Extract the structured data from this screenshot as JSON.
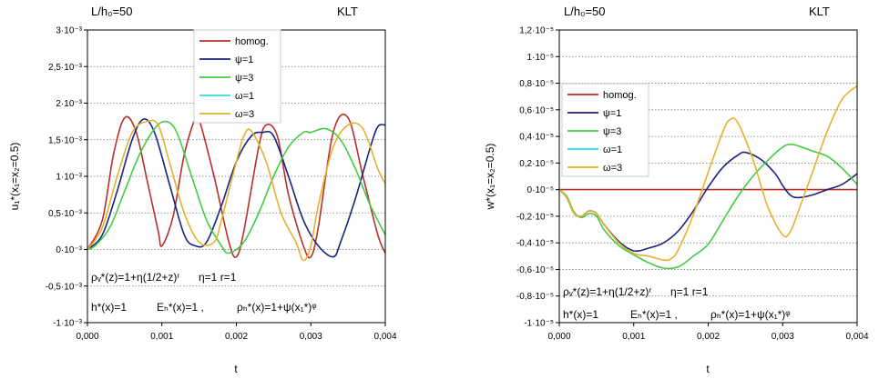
{
  "chart_data": [
    {
      "type": "line",
      "top_left_label": "L/h₀=50",
      "top_right_label": "KLT",
      "xlabel": "t",
      "ylabel": "u₁*(x₁=x₂=0.5)",
      "xlim": [
        0,
        0.004
      ],
      "ylim": [
        -0.001,
        0.003
      ],
      "x_ticks": [
        "0,000",
        "0,001",
        "0,002",
        "0,003",
        "0,004"
      ],
      "y_ticks": [
        "-1·10⁻³",
        "-0,5·10⁻³",
        "0·10⁻³",
        "0,5·10⁻³",
        "1·10⁻³",
        "1,5·10⁻³",
        "2·10⁻³",
        "2,5·10⁻³",
        "3·10⁻³"
      ],
      "annotations": {
        "rho_v": "ρᵥ*(z)=1+η(1/2+z)ʳ",
        "params": "η=1   r=1",
        "h": "h*(x)=1",
        "EH": "Eₕ*(x)=1 ,",
        "rhoH": "ρₕ*(x)=1+ψ(x₁*)ᵠ"
      },
      "legend_position": "top-center",
      "grid": "horizontal-dotted",
      "series": [
        {
          "name": "homog.",
          "color": "#b8302a",
          "x": [
            0,
            0.0002,
            0.00035,
            0.0005,
            0.00065,
            0.0008,
            0.00095,
            0.001,
            0.00115,
            0.0013,
            0.00145,
            0.0015,
            0.0017,
            0.0019,
            0.002,
            0.0021,
            0.0023,
            0.0024,
            0.00255,
            0.0027,
            0.0029,
            0.003,
            0.0031,
            0.0033,
            0.0035,
            0.0037,
            0.0039,
            0.004
          ],
          "y": [
            0,
            0.0004,
            0.0013,
            0.0018,
            0.00162,
            0.00095,
            0.00025,
            5e-05,
            0.00045,
            0.0013,
            0.0018,
            0.00178,
            0.001,
            0.0001,
            -0.0001,
            0.00025,
            0.0014,
            0.0017,
            0.00155,
            0.00075,
            5e-05,
            -0.0001,
            0.0003,
            0.0016,
            0.0018,
            0.001,
            0.0002,
            -5e-05
          ]
        },
        {
          "name": "ψ=1",
          "color": "#1a237e",
          "x": [
            0,
            0.0002,
            0.0004,
            0.0006,
            0.00075,
            0.0009,
            0.0011,
            0.0013,
            0.00145,
            0.0016,
            0.0018,
            0.002,
            0.0022,
            0.00235,
            0.0025,
            0.0027,
            0.0029,
            0.0031,
            0.0033,
            0.0034,
            0.0036,
            0.0038,
            0.0039,
            0.004
          ],
          "y": [
            0,
            0.0002,
            0.0008,
            0.0015,
            0.00178,
            0.0016,
            0.0009,
            0.0002,
            5e-05,
            0.0001,
            0.0006,
            0.0012,
            0.00155,
            0.0016,
            0.00155,
            0.001,
            0.0004,
            5e-05,
            -0.0001,
            0.0001,
            0.0007,
            0.0014,
            0.00168,
            0.0017
          ]
        },
        {
          "name": "ψ=3",
          "color": "#44cc44",
          "x": [
            0,
            0.0001,
            0.0003,
            0.0005,
            0.0007,
            0.0009,
            0.00105,
            0.0012,
            0.0014,
            0.0016,
            0.0018,
            0.0019,
            0.0021,
            0.0023,
            0.0025,
            0.0027,
            0.0029,
            0.003,
            0.0032,
            0.0034,
            0.0036,
            0.0038,
            0.004
          ],
          "y": [
            0,
            5e-05,
            0.0003,
            0.0008,
            0.0013,
            0.00165,
            0.00175,
            0.0016,
            0.001,
            0.0004,
            5e-05,
            -5e-05,
            0.0001,
            0.0005,
            0.001,
            0.0014,
            0.0016,
            0.0016,
            0.00165,
            0.0015,
            0.0011,
            0.0006,
            0.0002
          ]
        },
        {
          "name": "ω=1",
          "color": "#33dddd",
          "x": [],
          "y": []
        },
        {
          "name": "ω=3",
          "color": "#e6b030",
          "x": [
            0,
            0.0002,
            0.0004,
            0.0006,
            0.0008,
            0.00095,
            0.0011,
            0.0013,
            0.0015,
            0.0017,
            0.0018,
            0.0019,
            0.002,
            0.0021,
            0.0022,
            0.0024,
            0.0026,
            0.0028,
            0.0029,
            0.003,
            0.0031,
            0.0033,
            0.0035,
            0.0037,
            0.0039,
            0.004
          ],
          "y": [
            0,
            0.0003,
            0.001,
            0.0016,
            0.00175,
            0.0017,
            0.0012,
            0.0005,
            0.0001,
            0.0001,
            0.0004,
            0.0008,
            0.0012,
            0.00155,
            0.00162,
            0.0012,
            0.0005,
            0.0001,
            -0.00015,
            5e-05,
            0.0006,
            0.0014,
            0.0017,
            0.00165,
            0.0011,
            0.0009
          ]
        }
      ]
    },
    {
      "type": "line",
      "top_left_label": "L/h₀=50",
      "top_right_label": "KLT",
      "xlabel": "t",
      "ylabel": "w*(x₁=x₂=0.5)",
      "xlim": [
        0,
        0.004
      ],
      "ylim": [
        -1e-05,
        1.2e-05
      ],
      "x_ticks": [
        "0,000",
        "0,001",
        "0,002",
        "0,003",
        "0,004"
      ],
      "y_ticks": [
        "-1·10⁻⁵",
        "-0,8·10⁻⁵",
        "-0,6·10⁻⁵",
        "-0,4·10⁻⁵",
        "-0,2·10⁻⁵",
        "0·10⁻⁵",
        "0,2·10⁻⁵",
        "0,4·10⁻⁵",
        "0,6·10⁻⁵",
        "0,8·10⁻⁵",
        "1·10⁻⁵",
        "1,2·10⁻⁵"
      ],
      "annotations": {
        "rho_v": "ρᵥ*(z)=1+η(1/2+z)ʳ",
        "params": "η=1   r=1",
        "h": "h*(x)=1",
        "EH": "Eₕ*(x)=1 ,",
        "rhoH": "ρₕ*(x)=1+ψ(x₁*)ᵠ"
      },
      "legend_position": "top-left",
      "grid": "horizontal-dotted",
      "series": [
        {
          "name": "homog.",
          "color": "#b8302a",
          "x": [
            0,
            0.004
          ],
          "y": [
            0,
            0
          ]
        },
        {
          "name": "ψ=1",
          "color": "#1a237e",
          "x": [
            0,
            0.0001,
            0.0002,
            0.0003,
            0.0004,
            0.0005,
            0.0006,
            0.0008,
            0.001,
            0.0012,
            0.0014,
            0.0016,
            0.0018,
            0.002,
            0.0022,
            0.0024,
            0.0025,
            0.0027,
            0.0029,
            0.003,
            0.0031,
            0.0032,
            0.0034,
            0.0036,
            0.0038,
            0.004
          ],
          "y": [
            0,
            -6e-07,
            -1.8e-06,
            -2e-06,
            -1.6e-06,
            -1.8e-06,
            -2.6e-06,
            -3.9e-06,
            -4.6e-06,
            -4.4e-06,
            -4e-06,
            -3.1e-06,
            -1.6e-06,
            2e-07,
            1.7e-06,
            2.6e-06,
            2.8e-06,
            2.3e-06,
            1.2e-06,
            3e-07,
            -4e-07,
            -6e-07,
            -4e-07,
            0,
            4e-07,
            1.2e-06
          ]
        },
        {
          "name": "ψ=3",
          "color": "#44cc44",
          "x": [
            0,
            0.0001,
            0.0002,
            0.0003,
            0.0004,
            0.0005,
            0.0006,
            0.0008,
            0.001,
            0.0012,
            0.0014,
            0.0016,
            0.0018,
            0.002,
            0.0022,
            0.0024,
            0.0026,
            0.0028,
            0.003,
            0.0031,
            0.0032,
            0.0034,
            0.0036,
            0.0038,
            0.004
          ],
          "y": [
            0,
            -5e-07,
            -1.7e-06,
            -2.1e-06,
            -1.8e-06,
            -2e-06,
            -3e-06,
            -4.2e-06,
            -4.9e-06,
            -5.5e-06,
            -5.9e-06,
            -5.8e-06,
            -5e-06,
            -4.1e-06,
            -2.3e-06,
            -5e-07,
            1e-06,
            2.2e-06,
            3.2e-06,
            3.4e-06,
            3.3e-06,
            2.9e-06,
            2.5e-06,
            1.6e-06,
            4e-07
          ]
        },
        {
          "name": "ω=1",
          "color": "#33dddd",
          "x": [],
          "y": []
        },
        {
          "name": "ω=3",
          "color": "#e6b030",
          "x": [
            0,
            0.0001,
            0.0002,
            0.0003,
            0.0004,
            0.0005,
            0.0006,
            0.0008,
            0.001,
            0.0012,
            0.0014,
            0.0015,
            0.0016,
            0.0018,
            0.002,
            0.0022,
            0.0023,
            0.0024,
            0.0026,
            0.0028,
            0.003,
            0.0031,
            0.0032,
            0.0034,
            0.0036,
            0.0038,
            0.004
          ],
          "y": [
            0,
            -6e-07,
            -1.8e-06,
            -2e-06,
            -1.6e-06,
            -1.8e-06,
            -2.6e-06,
            -4e-06,
            -4.8e-06,
            -5e-06,
            -5.3e-06,
            -5.2e-06,
            -4.5e-06,
            -1.9e-06,
            1.3e-06,
            4.4e-06,
            5.3e-06,
            5e-06,
            2.3e-06,
            -1.3e-06,
            -3.4e-06,
            -3.2e-06,
            -1.8e-06,
            1.3e-06,
            4.4e-06,
            6.8e-06,
            7.8e-06
          ]
        }
      ]
    }
  ]
}
